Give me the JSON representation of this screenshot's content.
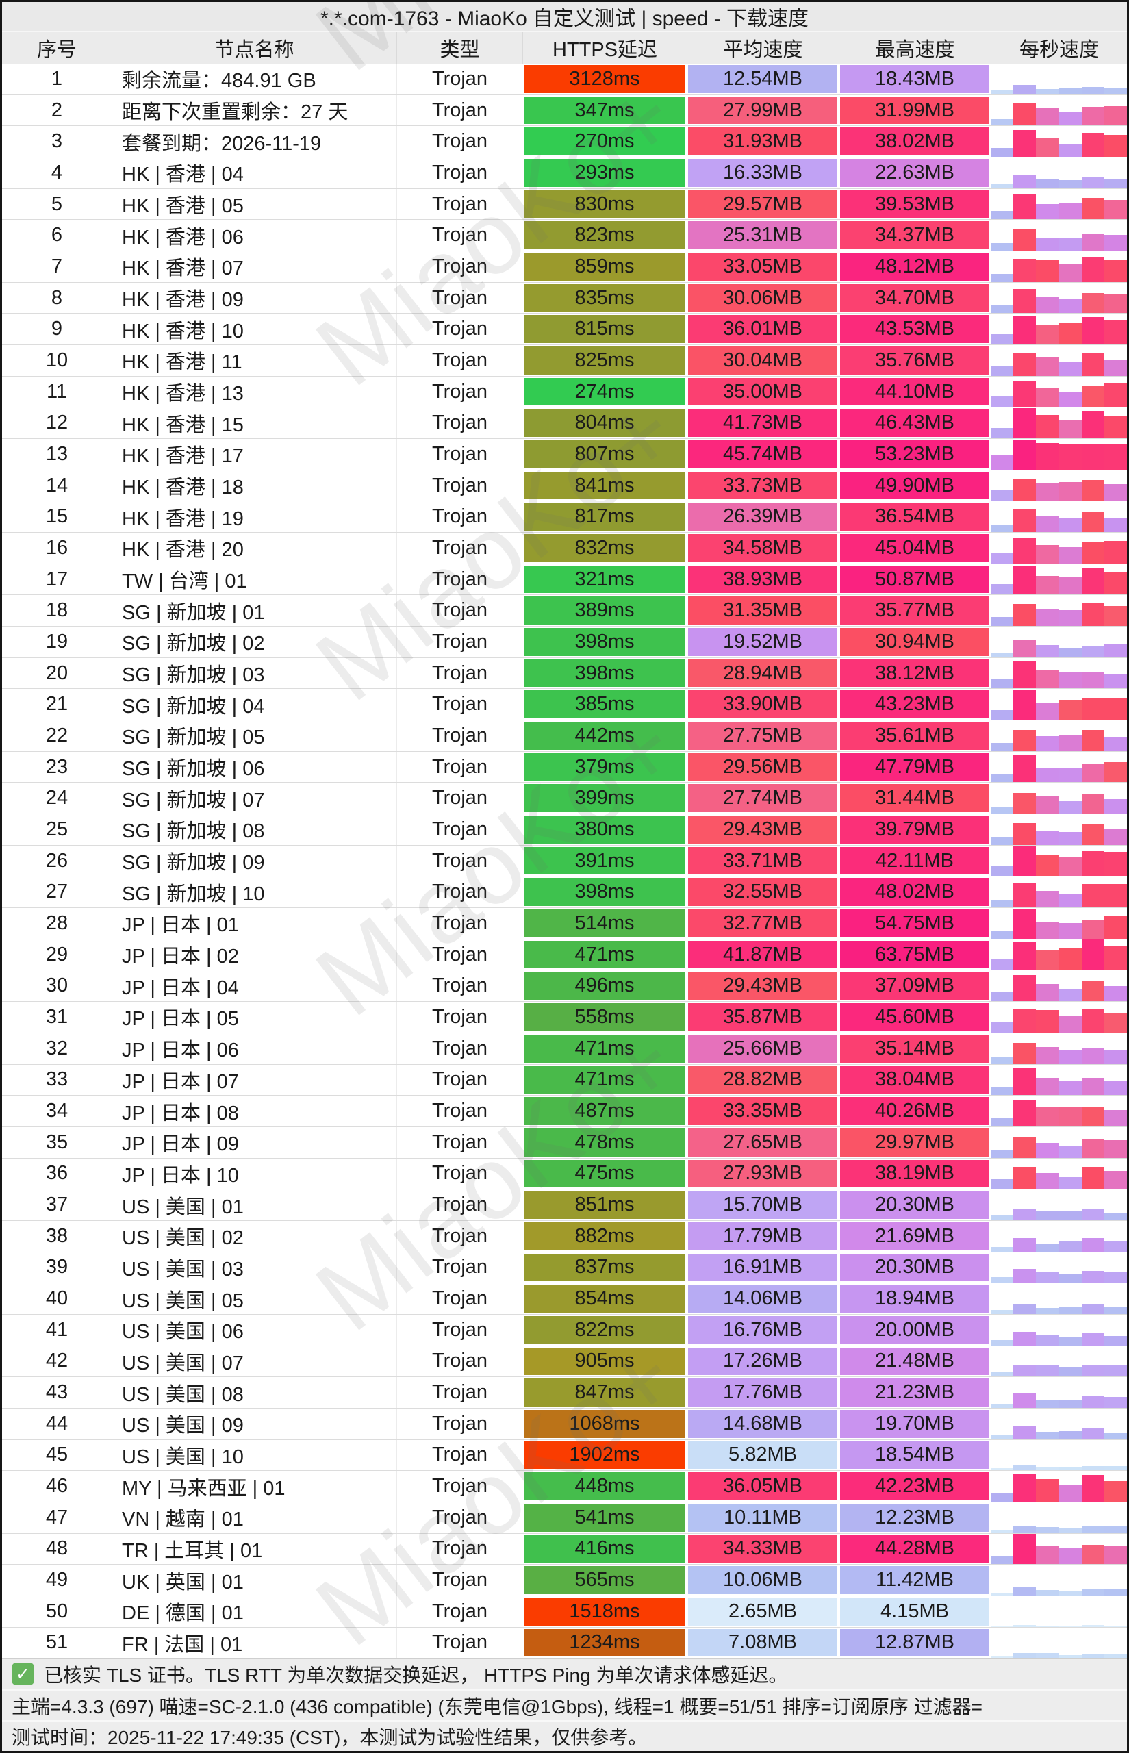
{
  "window": {
    "title": "*.*.com-1763 - MiaoKo 自定义测试 | speed - 下载速度"
  },
  "watermark": "MiaoKo+",
  "table": {
    "headers": [
      "序号",
      "节点名称",
      "类型",
      "HTTPS延迟",
      "平均速度",
      "最高速度",
      "每秒速度"
    ],
    "rows": [
      {
        "no": "1",
        "name": "剩余流量：484.91 GB",
        "type": "Trojan",
        "latency": "3128ms",
        "avg": "12.54MB",
        "max": "18.43MB"
      },
      {
        "no": "2",
        "name": "距离下次重置剩余：27 天",
        "type": "Trojan",
        "latency": "347ms",
        "avg": "27.99MB",
        "max": "31.99MB"
      },
      {
        "no": "3",
        "name": "套餐到期：2026-11-19",
        "type": "Trojan",
        "latency": "270ms",
        "avg": "31.93MB",
        "max": "38.02MB"
      },
      {
        "no": "4",
        "name": "HK | 香港 | 04",
        "type": "Trojan",
        "latency": "293ms",
        "avg": "16.33MB",
        "max": "22.63MB"
      },
      {
        "no": "5",
        "name": "HK | 香港 | 05",
        "type": "Trojan",
        "latency": "830ms",
        "avg": "29.57MB",
        "max": "39.53MB"
      },
      {
        "no": "6",
        "name": "HK | 香港 | 06",
        "type": "Trojan",
        "latency": "823ms",
        "avg": "25.31MB",
        "max": "34.37MB"
      },
      {
        "no": "7",
        "name": "HK | 香港 | 07",
        "type": "Trojan",
        "latency": "859ms",
        "avg": "33.05MB",
        "max": "48.12MB"
      },
      {
        "no": "8",
        "name": "HK | 香港 | 09",
        "type": "Trojan",
        "latency": "835ms",
        "avg": "30.06MB",
        "max": "34.70MB"
      },
      {
        "no": "9",
        "name": "HK | 香港 | 10",
        "type": "Trojan",
        "latency": "815ms",
        "avg": "36.01MB",
        "max": "43.53MB"
      },
      {
        "no": "10",
        "name": "HK | 香港 | 11",
        "type": "Trojan",
        "latency": "825ms",
        "avg": "30.04MB",
        "max": "35.76MB"
      },
      {
        "no": "11",
        "name": "HK | 香港 | 13",
        "type": "Trojan",
        "latency": "274ms",
        "avg": "35.00MB",
        "max": "44.10MB"
      },
      {
        "no": "12",
        "name": "HK | 香港 | 15",
        "type": "Trojan",
        "latency": "804ms",
        "avg": "41.73MB",
        "max": "46.43MB"
      },
      {
        "no": "13",
        "name": "HK | 香港 | 17",
        "type": "Trojan",
        "latency": "807ms",
        "avg": "45.74MB",
        "max": "53.23MB"
      },
      {
        "no": "14",
        "name": "HK | 香港 | 18",
        "type": "Trojan",
        "latency": "841ms",
        "avg": "33.73MB",
        "max": "49.90MB"
      },
      {
        "no": "15",
        "name": "HK | 香港 | 19",
        "type": "Trojan",
        "latency": "817ms",
        "avg": "26.39MB",
        "max": "36.54MB"
      },
      {
        "no": "16",
        "name": "HK | 香港 | 20",
        "type": "Trojan",
        "latency": "832ms",
        "avg": "34.58MB",
        "max": "45.04MB"
      },
      {
        "no": "17",
        "name": "TW | 台湾 | 01",
        "type": "Trojan",
        "latency": "321ms",
        "avg": "38.93MB",
        "max": "50.87MB"
      },
      {
        "no": "18",
        "name": "SG | 新加坡 | 01",
        "type": "Trojan",
        "latency": "389ms",
        "avg": "31.35MB",
        "max": "35.77MB"
      },
      {
        "no": "19",
        "name": "SG | 新加坡 | 02",
        "type": "Trojan",
        "latency": "398ms",
        "avg": "19.52MB",
        "max": "30.94MB"
      },
      {
        "no": "20",
        "name": "SG | 新加坡 | 03",
        "type": "Trojan",
        "latency": "398ms",
        "avg": "28.94MB",
        "max": "38.12MB"
      },
      {
        "no": "21",
        "name": "SG | 新加坡 | 04",
        "type": "Trojan",
        "latency": "385ms",
        "avg": "33.90MB",
        "max": "43.23MB"
      },
      {
        "no": "22",
        "name": "SG | 新加坡 | 05",
        "type": "Trojan",
        "latency": "442ms",
        "avg": "27.75MB",
        "max": "35.61MB"
      },
      {
        "no": "23",
        "name": "SG | 新加坡 | 06",
        "type": "Trojan",
        "latency": "379ms",
        "avg": "29.56MB",
        "max": "47.79MB"
      },
      {
        "no": "24",
        "name": "SG | 新加坡 | 07",
        "type": "Trojan",
        "latency": "399ms",
        "avg": "27.74MB",
        "max": "31.44MB"
      },
      {
        "no": "25",
        "name": "SG | 新加坡 | 08",
        "type": "Trojan",
        "latency": "380ms",
        "avg": "29.43MB",
        "max": "39.79MB"
      },
      {
        "no": "26",
        "name": "SG | 新加坡 | 09",
        "type": "Trojan",
        "latency": "391ms",
        "avg": "33.71MB",
        "max": "42.11MB"
      },
      {
        "no": "27",
        "name": "SG | 新加坡 | 10",
        "type": "Trojan",
        "latency": "398ms",
        "avg": "32.55MB",
        "max": "48.02MB"
      },
      {
        "no": "28",
        "name": "JP | 日本 | 01",
        "type": "Trojan",
        "latency": "514ms",
        "avg": "32.77MB",
        "max": "54.75MB"
      },
      {
        "no": "29",
        "name": "JP | 日本 | 02",
        "type": "Trojan",
        "latency": "471ms",
        "avg": "41.87MB",
        "max": "63.75MB"
      },
      {
        "no": "30",
        "name": "JP | 日本 | 04",
        "type": "Trojan",
        "latency": "496ms",
        "avg": "29.43MB",
        "max": "37.09MB"
      },
      {
        "no": "31",
        "name": "JP | 日本 | 05",
        "type": "Trojan",
        "latency": "558ms",
        "avg": "35.87MB",
        "max": "45.60MB"
      },
      {
        "no": "32",
        "name": "JP | 日本 | 06",
        "type": "Trojan",
        "latency": "471ms",
        "avg": "25.66MB",
        "max": "35.14MB"
      },
      {
        "no": "33",
        "name": "JP | 日本 | 07",
        "type": "Trojan",
        "latency": "471ms",
        "avg": "28.82MB",
        "max": "38.04MB"
      },
      {
        "no": "34",
        "name": "JP | 日本 | 08",
        "type": "Trojan",
        "latency": "487ms",
        "avg": "33.35MB",
        "max": "40.26MB"
      },
      {
        "no": "35",
        "name": "JP | 日本 | 09",
        "type": "Trojan",
        "latency": "478ms",
        "avg": "27.65MB",
        "max": "29.97MB"
      },
      {
        "no": "36",
        "name": "JP | 日本 | 10",
        "type": "Trojan",
        "latency": "475ms",
        "avg": "27.93MB",
        "max": "38.19MB"
      },
      {
        "no": "37",
        "name": "US | 美国 | 01",
        "type": "Trojan",
        "latency": "851ms",
        "avg": "15.70MB",
        "max": "20.30MB"
      },
      {
        "no": "38",
        "name": "US | 美国 | 02",
        "type": "Trojan",
        "latency": "882ms",
        "avg": "17.79MB",
        "max": "21.69MB"
      },
      {
        "no": "39",
        "name": "US | 美国 | 03",
        "type": "Trojan",
        "latency": "837ms",
        "avg": "16.91MB",
        "max": "20.30MB"
      },
      {
        "no": "40",
        "name": "US | 美国 | 05",
        "type": "Trojan",
        "latency": "854ms",
        "avg": "14.06MB",
        "max": "18.94MB"
      },
      {
        "no": "41",
        "name": "US | 美国 | 06",
        "type": "Trojan",
        "latency": "822ms",
        "avg": "16.76MB",
        "max": "20.00MB"
      },
      {
        "no": "42",
        "name": "US | 美国 | 07",
        "type": "Trojan",
        "latency": "905ms",
        "avg": "17.26MB",
        "max": "21.48MB"
      },
      {
        "no": "43",
        "name": "US | 美国 | 08",
        "type": "Trojan",
        "latency": "847ms",
        "avg": "17.76MB",
        "max": "21.23MB"
      },
      {
        "no": "44",
        "name": "US | 美国 | 09",
        "type": "Trojan",
        "latency": "1068ms",
        "avg": "14.68MB",
        "max": "19.70MB"
      },
      {
        "no": "45",
        "name": "US | 美国 | 10",
        "type": "Trojan",
        "latency": "1902ms",
        "avg": "5.82MB",
        "max": "18.54MB"
      },
      {
        "no": "46",
        "name": "MY | 马来西亚 | 01",
        "type": "Trojan",
        "latency": "448ms",
        "avg": "36.05MB",
        "max": "42.23MB"
      },
      {
        "no": "47",
        "name": "VN | 越南 | 01",
        "type": "Trojan",
        "latency": "541ms",
        "avg": "10.11MB",
        "max": "12.23MB"
      },
      {
        "no": "48",
        "name": "TR | 土耳其 | 01",
        "type": "Trojan",
        "latency": "416ms",
        "avg": "34.33MB",
        "max": "44.28MB"
      },
      {
        "no": "49",
        "name": "UK | 英国 | 01",
        "type": "Trojan",
        "latency": "565ms",
        "avg": "10.06MB",
        "max": "11.42MB"
      },
      {
        "no": "50",
        "name": "DE | 德国 | 01",
        "type": "Trojan",
        "latency": "1518ms",
        "avg": "2.65MB",
        "max": "4.15MB"
      },
      {
        "no": "51",
        "name": "FR | 法国 | 01",
        "type": "Trojan",
        "latency": "1234ms",
        "avg": "7.08MB",
        "max": "12.87MB"
      }
    ]
  },
  "footer": {
    "line1": "已核实 TLS 证书。TLS RTT 为单次数据交换延迟， HTTPS Ping 为单次请求体感延迟。",
    "line2": "主端=4.3.3 (697) 喵速=SC-2.1.0 (436 compatible) (东莞电信@1Gbps), 线程=1 概要=51/51 排序=订阅原序 过滤器=",
    "line3": "测试时间：2025-11-22 17:49:35 (CST)，本测试为试验性结果，仅供参考。"
  },
  "colors": {
    "window_border": "#161616",
    "titlebar_bg": "#e9e9e9",
    "header_bg": "#ebebeb",
    "footer_bg": "#ededed",
    "check_green": "#66b45c",
    "latency_scale": [
      [
        250,
        "#30cd52"
      ],
      [
        400,
        "#3ec24e"
      ],
      [
        500,
        "#4db749"
      ],
      [
        600,
        "#5faa42"
      ],
      [
        800,
        "#8c9b32"
      ],
      [
        900,
        "#a59a28"
      ],
      [
        1000,
        "#b47d1c"
      ],
      [
        1100,
        "#be6e16"
      ],
      [
        1300,
        "#c8550e"
      ],
      [
        1500,
        "#fa3c00"
      ]
    ],
    "speed_scale": [
      [
        0,
        "#e8f4fc"
      ],
      [
        5,
        "#cde3f8"
      ],
      [
        10,
        "#b4c3f3"
      ],
      [
        13,
        "#b2aff2"
      ],
      [
        16,
        "#c0a4f4"
      ],
      [
        19,
        "#c696f1"
      ],
      [
        22,
        "#d287e9"
      ],
      [
        25,
        "#e176c8"
      ],
      [
        27,
        "#f068a0"
      ],
      [
        28.5,
        "#f95a6a"
      ],
      [
        31,
        "#fb4f63"
      ],
      [
        34,
        "#fb446f"
      ],
      [
        38,
        "#fb3377"
      ],
      [
        43,
        "#fb2b7b"
      ],
      [
        50,
        "#fa2280"
      ],
      [
        64,
        "#f91f80"
      ]
    ]
  }
}
